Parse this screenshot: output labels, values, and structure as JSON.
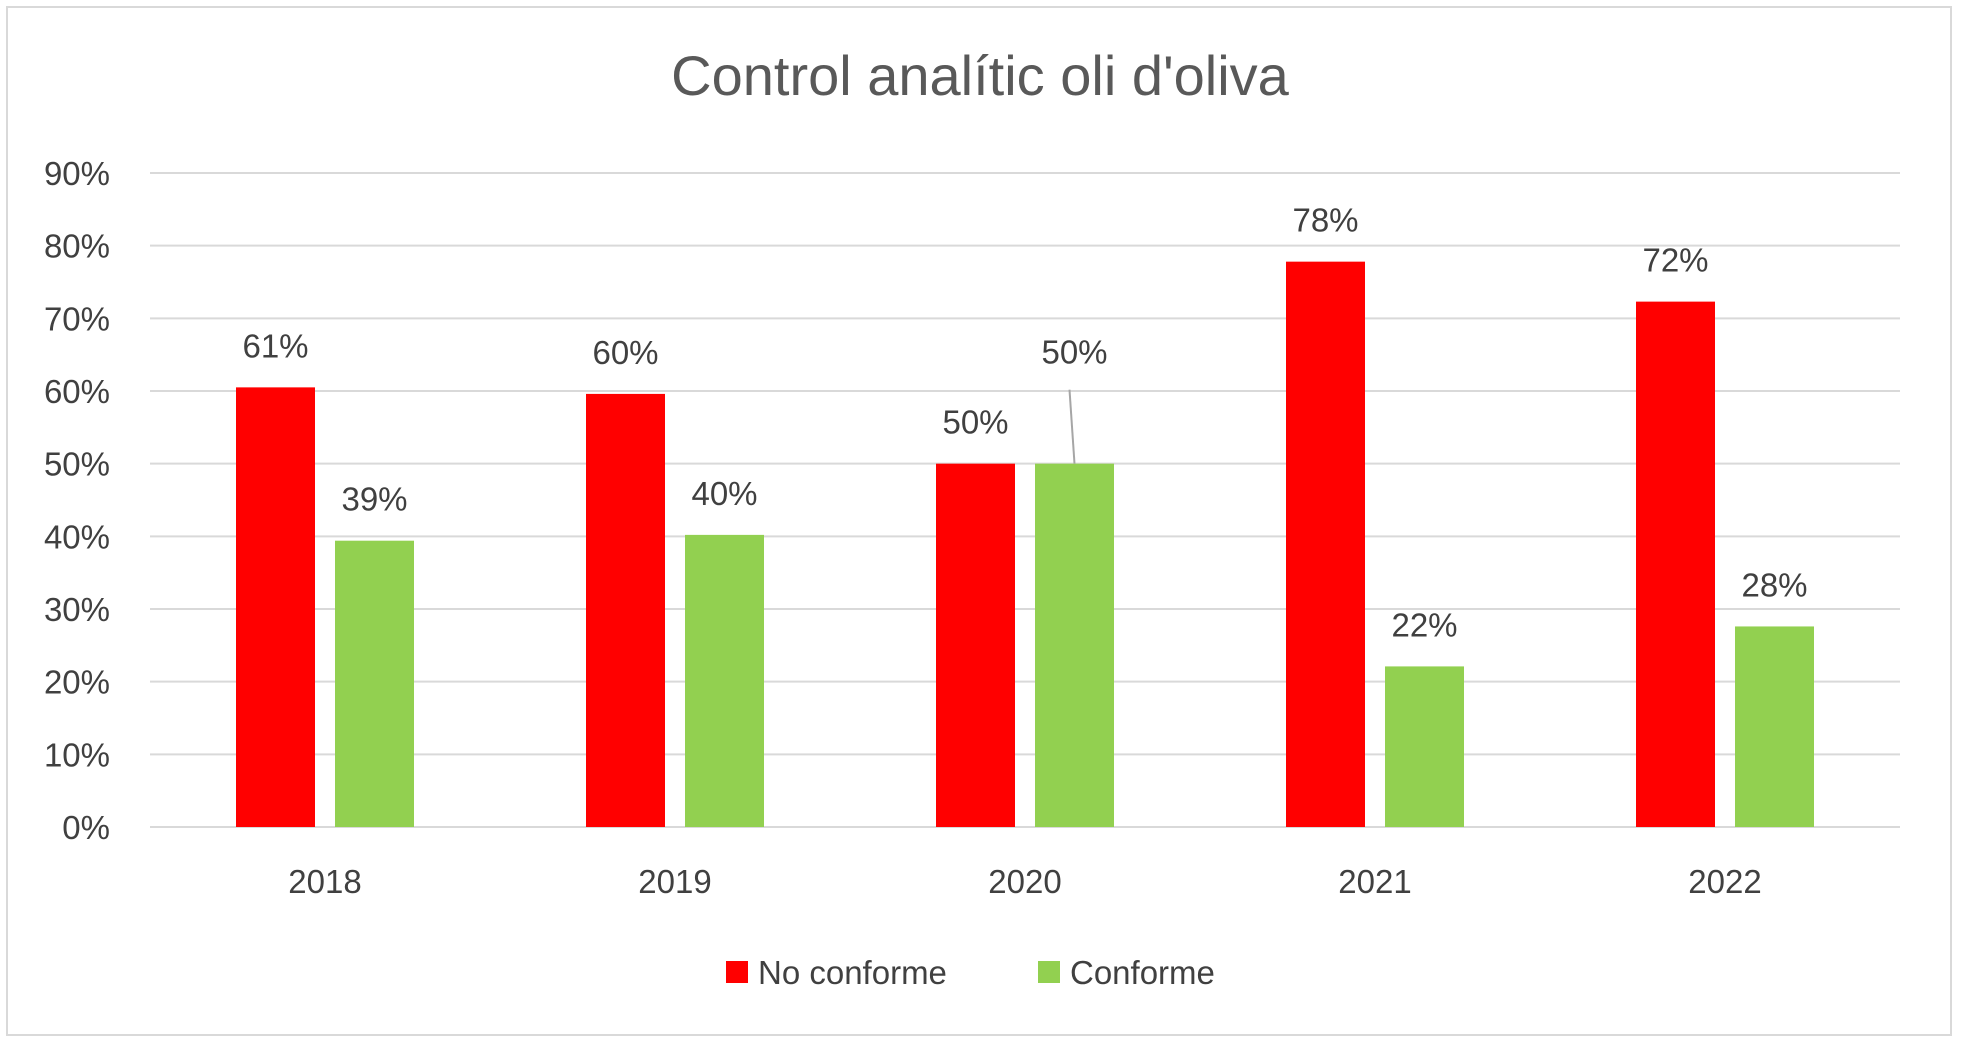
{
  "chart_data": {
    "type": "bar",
    "title": "Control analític oli d'oliva",
    "categories": [
      "2018",
      "2019",
      "2020",
      "2021",
      "2022"
    ],
    "series": [
      {
        "name": "No conforme",
        "color": "#ff0000",
        "values": [
          0.605,
          0.596,
          0.5,
          0.778,
          0.723
        ],
        "labels": [
          "61%",
          "60%",
          "50%",
          "78%",
          "72%"
        ]
      },
      {
        "name": "Conforme",
        "color": "#92d050",
        "values": [
          0.394,
          0.402,
          0.5,
          0.221,
          0.276
        ],
        "labels": [
          "39%",
          "40%",
          "50%",
          "22%",
          "28%"
        ]
      }
    ],
    "ylim": [
      0,
      0.9
    ],
    "ytick_values": [
      0,
      0.1,
      0.2,
      0.3,
      0.4,
      0.5,
      0.6,
      0.7,
      0.8,
      0.9
    ],
    "ytick_labels": [
      "0%",
      "10%",
      "20%",
      "30%",
      "40%",
      "50%",
      "60%",
      "70%",
      "80%",
      "90%"
    ],
    "xlabel": "",
    "ylabel": "",
    "grid": true,
    "legend_position": "bottom"
  }
}
